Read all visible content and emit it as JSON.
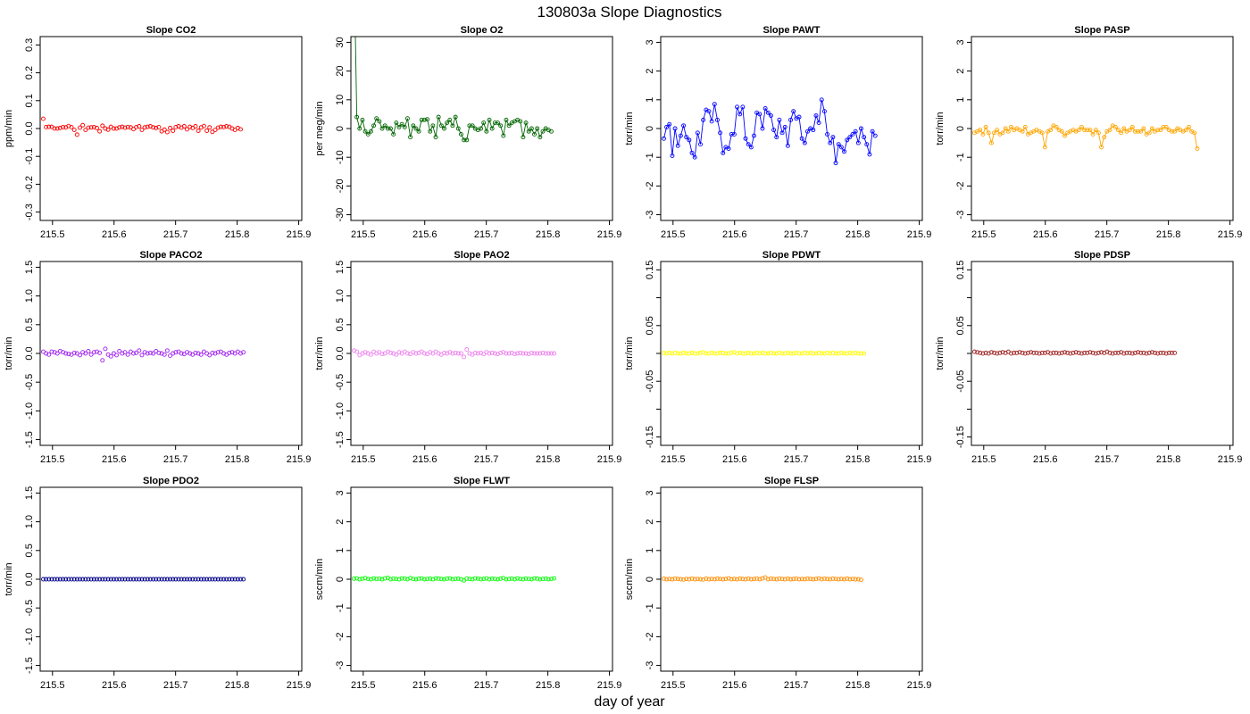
{
  "figure": {
    "title": "130803a   Slope Diagnostics",
    "xlabel": "day of year"
  },
  "chart_data": [
    {
      "type": "line",
      "title": "Slope CO2",
      "ylabel": "ppm/min",
      "xlim": [
        215.48,
        215.905
      ],
      "ylim": [
        -0.33,
        0.33
      ],
      "xticks": [
        215.5,
        215.6,
        215.7,
        215.8,
        215.9
      ],
      "xtick_labels": [
        "215.5",
        "215.6",
        "215.7",
        "215.8",
        "215.9"
      ],
      "yticks": [
        -0.3,
        -0.2,
        -0.1,
        0,
        0.1,
        0.2,
        0.3
      ],
      "ytick_labels": [
        "-0.3",
        "-0.2",
        "-0.1",
        "0.0",
        "0.1",
        "0.2",
        "0.3"
      ],
      "color": "#ff0000",
      "lines": false,
      "x_start": 215.485,
      "x_step": 0.00458,
      "values": [
        0.035,
        0.005,
        0.006,
        0.006,
        0.0,
        0.0,
        0.002,
        0.005,
        0.004,
        0.009,
        0.005,
        -0.005,
        -0.022,
        0.003,
        0.012,
        -0.005,
        0.003,
        0.004,
        0.005,
        0.002,
        -0.01,
        0.01,
        0.0,
        -0.004,
        0.006,
        0.0,
        0.0,
        0.004,
        0.006,
        0.003,
        0.005,
        0.004,
        -0.002,
        0.005,
        0.008,
        -0.005,
        0.004,
        0.006,
        0.008,
        0.004,
        0.002,
        0.005,
        -0.01,
        -0.004,
        -0.013,
        0.002,
        -0.008,
        0.005,
        0.008,
        0.003,
        0.008,
        -0.003,
        0.006,
        0.002,
        0.008,
        -0.008,
        0.004,
        0.009,
        -0.008,
        0.004,
        -0.012,
        -0.005,
        0.003,
        0.006,
        0.005,
        0.008,
        0.006,
        0.0,
        -0.005,
        0.002,
        -0.003
      ]
    },
    {
      "type": "line",
      "title": "Slope O2",
      "ylabel": "per meg/min",
      "xlim": [
        215.48,
        215.905
      ],
      "ylim": [
        -32,
        32
      ],
      "xticks": [
        215.5,
        215.6,
        215.7,
        215.8,
        215.9
      ],
      "xtick_labels": [
        "215.5",
        "215.6",
        "215.7",
        "215.8",
        "215.9"
      ],
      "yticks": [
        -30,
        -20,
        -10,
        0,
        10,
        20,
        30
      ],
      "ytick_labels": [
        "-30",
        "-20",
        "-10",
        "0",
        "10",
        "20",
        "30"
      ],
      "color": "#006400",
      "lines": true,
      "x_start": 215.485,
      "x_step": 0.00458,
      "values": [
        60,
        4,
        0,
        3,
        -1,
        -2,
        -1,
        1,
        3.5,
        2.5,
        0,
        1,
        0,
        0,
        -2,
        2,
        0.5,
        1.5,
        0.5,
        3.5,
        -3,
        1,
        0,
        -1,
        3,
        3,
        3.2,
        -1,
        1,
        -3,
        4,
        1,
        0,
        2,
        3,
        1,
        4,
        0,
        -2,
        -4,
        -4,
        1,
        1,
        0,
        -0.5,
        0,
        2,
        -1,
        3,
        0,
        2,
        2,
        1,
        -2.5,
        3,
        1,
        2,
        2.5,
        3,
        2.5,
        -3,
        2,
        -1,
        0,
        -2,
        0,
        -3,
        -1,
        0,
        -0.5,
        -1
      ]
    },
    {
      "type": "line",
      "title": "Slope PAWT",
      "ylabel": "torr/min",
      "xlim": [
        215.48,
        215.905
      ],
      "ylim": [
        -3.2,
        3.2
      ],
      "xticks": [
        215.5,
        215.6,
        215.7,
        215.8,
        215.9
      ],
      "xtick_labels": [
        "215.5",
        "215.6",
        "215.7",
        "215.8",
        "215.9"
      ],
      "yticks": [
        -3,
        -2,
        -1,
        0,
        1,
        2,
        3
      ],
      "ytick_labels": [
        "-3",
        "-2",
        "-1",
        "0",
        "1",
        "2",
        "3"
      ],
      "color": "#0000ff",
      "lines": true,
      "x_start": 215.485,
      "x_step": 0.00458,
      "values": [
        -0.35,
        0.05,
        0.15,
        -0.95,
        0.0,
        -0.6,
        -0.25,
        0.1,
        -0.3,
        -0.4,
        -0.85,
        -1.0,
        -0.15,
        -0.55,
        0.3,
        0.65,
        0.6,
        0.25,
        0.85,
        0.3,
        -0.15,
        -0.85,
        -0.65,
        -0.7,
        -0.2,
        -0.2,
        0.75,
        0.5,
        0.75,
        -0.35,
        -0.55,
        -0.65,
        -0.25,
        0.55,
        0.5,
        0.0,
        0.7,
        0.55,
        0.45,
        -0.05,
        -0.3,
        0.3,
        -0.15,
        0.05,
        -0.6,
        0.3,
        0.6,
        0.35,
        0.4,
        -0.35,
        -0.5,
        -0.1,
        0.0,
        -0.05,
        0.45,
        0.2,
        1.0,
        0.6,
        -0.2,
        -0.5,
        -0.3,
        -1.2,
        -0.55,
        -0.65,
        -0.8,
        -0.4,
        -0.3,
        -0.2,
        -0.1,
        -0.5,
        0.0,
        -0.3,
        -0.55,
        -0.9,
        -0.1,
        -0.25
      ]
    },
    {
      "type": "line",
      "title": "Slope PASP",
      "ylabel": "torr/min",
      "xlim": [
        215.48,
        215.905
      ],
      "ylim": [
        -3.2,
        3.2
      ],
      "xticks": [
        215.5,
        215.6,
        215.7,
        215.8,
        215.9
      ],
      "xtick_labels": [
        "215.5",
        "215.6",
        "215.7",
        "215.8",
        "215.9"
      ],
      "yticks": [
        -3,
        -2,
        -1,
        0,
        1,
        2,
        3
      ],
      "ytick_labels": [
        "-3",
        "-2",
        "-1",
        "0",
        "1",
        "2",
        "3"
      ],
      "color": "#ffa500",
      "lines": true,
      "x_start": 215.485,
      "x_step": 0.00458,
      "values": [
        -0.15,
        -0.1,
        -0.05,
        -0.2,
        0.05,
        -0.15,
        -0.5,
        -0.15,
        -0.05,
        -0.2,
        -0.15,
        0.0,
        -0.1,
        0.05,
        -0.05,
        0.0,
        -0.05,
        -0.1,
        0.05,
        -0.2,
        -0.15,
        -0.1,
        -0.05,
        -0.1,
        -0.15,
        -0.65,
        -0.1,
        -0.05,
        0.1,
        0.05,
        -0.05,
        -0.1,
        -0.25,
        -0.15,
        -0.1,
        -0.05,
        -0.1,
        -0.05,
        0.05,
        -0.05,
        -0.05,
        -0.05,
        -0.2,
        -0.05,
        -0.15,
        -0.65,
        -0.3,
        -0.1,
        -0.05,
        0.1,
        0.05,
        -0.05,
        -0.15,
        0.0,
        -0.1,
        -0.05,
        0.05,
        -0.1,
        -0.1,
        -0.1,
        0.0,
        -0.2,
        -0.15,
        0.0,
        -0.1,
        -0.05,
        -0.05,
        0.05,
        0.05,
        -0.05,
        -0.1,
        -0.1,
        0.0,
        -0.05,
        -0.1,
        -0.05,
        0.05,
        -0.1,
        -0.15,
        -0.7
      ]
    },
    {
      "type": "line",
      "title": "Slope PACO2",
      "ylabel": "torr/min",
      "xlim": [
        215.48,
        215.905
      ],
      "ylim": [
        -1.6,
        1.6
      ],
      "xticks": [
        215.5,
        215.6,
        215.7,
        215.8,
        215.9
      ],
      "xtick_labels": [
        "215.5",
        "215.6",
        "215.7",
        "215.8",
        "215.9"
      ],
      "yticks": [
        -1.5,
        -1,
        -0.5,
        0,
        0.5,
        1,
        1.5
      ],
      "ytick_labels": [
        "-1.5",
        "-1.0",
        "-0.5",
        "0.0",
        "0.5",
        "1.0",
        "1.5"
      ],
      "color": "#a020f0",
      "lines": false,
      "x_start": 215.485,
      "x_step": 0.00458,
      "values": [
        0.03,
        0.0,
        -0.02,
        0.03,
        0.02,
        0.0,
        0.04,
        0.02,
        0.0,
        -0.01,
        -0.02,
        0.01,
        0.0,
        -0.03,
        0.02,
        0.0,
        0.04,
        -0.02,
        0.02,
        0.03,
        0.01,
        -0.12,
        0.08,
        -0.02,
        -0.05,
        0.0,
        -0.03,
        0.04,
        0.0,
        0.02,
        -0.02,
        0.03,
        0.0,
        0.01,
        0.05,
        -0.03,
        0.02,
        0.0,
        0.01,
        0.0,
        0.04,
        0.01,
        0.0,
        -0.02,
        0.05,
        -0.04,
        0.0,
        0.02,
        0.03,
        0.0,
        -0.01,
        0.02,
        0.0,
        -0.02,
        0.01,
        0.0,
        -0.02,
        0.03,
        0.0,
        -0.03,
        0.01,
        0.0,
        0.02,
        0.03,
        0.0,
        -0.02,
        0.01,
        0.02,
        0.0,
        0.03,
        0.0,
        0.02
      ]
    },
    {
      "type": "line",
      "title": "Slope PAO2",
      "ylabel": "torr/min",
      "xlim": [
        215.48,
        215.905
      ],
      "ylim": [
        -1.6,
        1.6
      ],
      "xticks": [
        215.5,
        215.6,
        215.7,
        215.8,
        215.9
      ],
      "xtick_labels": [
        "215.5",
        "215.6",
        "215.7",
        "215.8",
        "215.9"
      ],
      "yticks": [
        -1.5,
        -1,
        -0.5,
        0,
        0.5,
        1,
        1.5
      ],
      "ytick_labels": [
        "-1.5",
        "-1.0",
        "-0.5",
        "0.0",
        "0.5",
        "1.0",
        "1.5"
      ],
      "color": "#ee82ee",
      "lines": false,
      "x_start": 215.485,
      "x_step": 0.00458,
      "values": [
        0.05,
        0.03,
        -0.03,
        0.0,
        0.02,
        0.0,
        -0.02,
        0.03,
        0.0,
        0.02,
        -0.01,
        0.0,
        0.03,
        0.01,
        0.0,
        -0.02,
        0.02,
        0.0,
        0.03,
        0.0,
        -0.01,
        0.02,
        0.0,
        0.01,
        0.03,
        0.0,
        -0.01,
        0.02,
        0.0,
        0.03,
        0.0,
        -0.02,
        0.01,
        0.0,
        0.02,
        0.0,
        0.01,
        0.0,
        0.0,
        -0.06,
        0.07,
        0.0,
        -0.02,
        0.01,
        0.0,
        0.01,
        -0.01,
        0.02,
        0.0,
        0.01,
        0.0,
        -0.01,
        0.01,
        0.02,
        0.0,
        0.0,
        0.01,
        -0.01,
        0.0,
        0.01,
        0.0,
        0.0,
        -0.01,
        0.01,
        0.0,
        0.0,
        0.0,
        0.01,
        0.0,
        0.0,
        0.0,
        0.0
      ]
    },
    {
      "type": "line",
      "title": "Slope PDWT",
      "ylabel": "torr/min",
      "xlim": [
        215.48,
        215.905
      ],
      "ylim": [
        -0.165,
        0.165
      ],
      "xticks": [
        215.5,
        215.6,
        215.7,
        215.8,
        215.9
      ],
      "xtick_labels": [
        "215.5",
        "215.6",
        "215.7",
        "215.8",
        "215.9"
      ],
      "yticks": [
        -0.15,
        -0.1,
        -0.05,
        0,
        0.05,
        0.1,
        0.15
      ],
      "ytick_labels": [
        "-0.15",
        "",
        "-0.05",
        "",
        "0.05",
        "",
        "0.15"
      ],
      "color": "#ffff00",
      "lines": false,
      "x_start": 215.485,
      "x_step": 0.00458,
      "values": [
        0.001,
        0.0,
        0.001,
        0.0,
        0.001,
        0.0,
        0.0,
        0.001,
        0.0,
        0.0,
        0.001,
        0.0,
        0.0,
        0.001,
        0.002,
        0.0,
        0.0,
        0.001,
        0.0,
        0.0,
        0.001,
        0.001,
        0.0,
        0.0,
        0.001,
        0.002,
        0.0,
        0.001,
        0.0,
        0.0,
        0.001,
        0.0,
        0.0,
        0.001,
        0.0,
        0.001,
        0.0,
        0.0,
        0.001,
        0.0,
        0.0,
        0.001,
        0.0,
        0.0,
        0.001,
        0.0,
        0.0,
        0.001,
        0.0,
        0.0,
        0.001,
        0.0,
        0.001,
        0.0,
        0.0,
        0.001,
        0.0,
        0.0,
        0.001,
        0.0,
        0.001,
        0.0,
        0.0,
        0.001,
        0.0,
        0.0,
        0.001,
        0.0,
        0.001,
        0.0,
        0.0,
        0.0
      ]
    },
    {
      "type": "line",
      "title": "Slope PDSP",
      "ylabel": "torr/min",
      "xlim": [
        215.48,
        215.905
      ],
      "ylim": [
        -0.165,
        0.165
      ],
      "xticks": [
        215.5,
        215.6,
        215.7,
        215.8,
        215.9
      ],
      "xtick_labels": [
        "215.5",
        "215.6",
        "215.7",
        "215.8",
        "215.9"
      ],
      "yticks": [
        -0.15,
        -0.1,
        -0.05,
        0,
        0.05,
        0.1,
        0.15
      ],
      "ytick_labels": [
        "-0.15",
        "",
        "-0.05",
        "",
        "0.05",
        "",
        "0.15"
      ],
      "color": "#a52a2a",
      "lines": false,
      "x_start": 215.485,
      "x_step": 0.00458,
      "values": [
        0.003,
        0.002,
        0.001,
        0.0,
        0.001,
        0.0,
        0.002,
        0.001,
        0.0,
        0.001,
        0.002,
        0.001,
        0.003,
        0.0,
        0.001,
        0.001,
        0.002,
        0.001,
        0.0,
        0.001,
        0.002,
        0.001,
        0.001,
        0.0,
        0.001,
        0.001,
        0.002,
        0.0,
        0.001,
        0.001,
        0.0,
        0.001,
        0.002,
        0.001,
        0.0,
        0.001,
        0.002,
        0.001,
        0.0,
        0.001,
        0.001,
        0.002,
        0.001,
        0.0,
        0.001,
        0.002,
        0.001,
        0.003,
        0.001,
        0.0,
        0.001,
        0.001,
        0.002,
        0.0,
        0.001,
        0.001,
        0.0,
        0.001,
        0.002,
        0.001,
        0.001,
        0.0,
        0.001,
        0.002,
        0.001,
        0.0,
        0.001,
        0.001,
        0.0,
        0.001,
        0.001,
        0.001
      ]
    },
    {
      "type": "line",
      "title": "Slope PDO2",
      "ylabel": "torr/min",
      "xlim": [
        215.48,
        215.905
      ],
      "ylim": [
        -1.6,
        1.6
      ],
      "xticks": [
        215.5,
        215.6,
        215.7,
        215.8,
        215.9
      ],
      "xtick_labels": [
        "215.5",
        "215.6",
        "215.7",
        "215.8",
        "215.9"
      ],
      "yticks": [
        -1.5,
        -1,
        -0.5,
        0,
        0.5,
        1,
        1.5
      ],
      "ytick_labels": [
        "-1.5",
        "-1.0",
        "-0.5",
        "0.0",
        "0.5",
        "1.0",
        "1.5"
      ],
      "color": "#00008b",
      "lines": false,
      "x_start": 215.485,
      "x_step": 0.00458,
      "values": [
        0,
        0,
        0,
        0,
        0,
        0,
        0,
        0,
        0,
        0,
        0,
        0,
        0,
        0,
        0,
        0,
        0,
        0,
        0,
        0,
        0,
        0,
        0,
        0,
        0,
        0,
        0,
        0,
        0,
        0,
        0,
        0,
        0,
        0,
        0,
        0,
        0,
        0,
        0,
        0,
        0,
        0,
        0,
        0,
        0,
        0,
        0,
        0,
        0,
        0,
        0,
        0,
        0,
        0,
        0,
        0,
        0,
        0,
        0,
        0,
        0,
        0,
        0,
        0,
        0,
        0,
        0,
        0,
        0,
        0,
        0,
        0
      ]
    },
    {
      "type": "line",
      "title": "Slope FLWT",
      "ylabel": "sccm/min",
      "xlim": [
        215.48,
        215.905
      ],
      "ylim": [
        -3.2,
        3.2
      ],
      "xticks": [
        215.5,
        215.6,
        215.7,
        215.8,
        215.9
      ],
      "xtick_labels": [
        "215.5",
        "215.6",
        "215.7",
        "215.8",
        "215.9"
      ],
      "yticks": [
        -3,
        -2,
        -1,
        0,
        1,
        2,
        3
      ],
      "ytick_labels": [
        "-3",
        "-2",
        "-1",
        "0",
        "1",
        "2",
        "3"
      ],
      "color": "#00ff00",
      "lines": false,
      "x_start": 215.485,
      "x_step": 0.00458,
      "values": [
        0.02,
        0.03,
        0.0,
        0.02,
        0.04,
        0.01,
        0.0,
        0.03,
        0.01,
        0.02,
        0.0,
        0.03,
        0.05,
        0.0,
        0.02,
        0.01,
        0.0,
        0.03,
        0.02,
        0.0,
        0.04,
        0.01,
        0.0,
        0.02,
        0.03,
        0.0,
        0.01,
        0.02,
        0.0,
        0.03,
        0.02,
        0.01,
        0.0,
        0.02,
        0.03,
        0.0,
        0.01,
        0.02,
        0.0,
        -0.04,
        0.02,
        0.01,
        0.0,
        0.03,
        0.02,
        0.0,
        0.01,
        0.03,
        0.0,
        0.02,
        0.01,
        0.0,
        0.02,
        0.04,
        0.0,
        0.01,
        0.02,
        0.0,
        0.03,
        0.01,
        0.0,
        0.02,
        0.01,
        0.0,
        0.03,
        0.02,
        0.0,
        0.01,
        0.02,
        0.0,
        0.01,
        0.03
      ]
    },
    {
      "type": "line",
      "title": "Slope FLSP",
      "ylabel": "sccm/min",
      "xlim": [
        215.48,
        215.905
      ],
      "ylim": [
        -3.2,
        3.2
      ],
      "xticks": [
        215.5,
        215.6,
        215.7,
        215.8,
        215.9
      ],
      "xtick_labels": [
        "215.5",
        "215.6",
        "215.7",
        "215.8",
        "215.9"
      ],
      "yticks": [
        -3,
        -2,
        -1,
        0,
        1,
        2,
        3
      ],
      "ytick_labels": [
        "-3",
        "-2",
        "-1",
        "0",
        "1",
        "2",
        "3"
      ],
      "color": "#ff8c00",
      "lines": false,
      "x_start": 215.485,
      "x_step": 0.00458,
      "values": [
        0.02,
        0.0,
        0.01,
        0.0,
        0.02,
        0.01,
        0.0,
        -0.01,
        0.01,
        0.0,
        0.02,
        0.0,
        0.01,
        0.0,
        -0.01,
        0.02,
        0.0,
        0.01,
        0.0,
        0.02,
        0.01,
        0.0,
        0.01,
        0.03,
        0.0,
        0.01,
        0.0,
        0.02,
        0.01,
        0.0,
        0.02,
        0.0,
        0.01,
        0.02,
        0.0,
        0.03,
        0.06,
        0.0,
        0.02,
        0.01,
        0.0,
        0.02,
        0.01,
        0.0,
        0.02,
        0.0,
        0.01,
        0.02,
        0.0,
        0.01,
        0.0,
        0.02,
        0.01,
        0.0,
        0.01,
        0.03,
        0.0,
        0.02,
        0.01,
        0.0,
        0.02,
        0.01,
        0.0,
        0.01,
        0.0,
        0.02,
        0.0,
        0.01,
        0.0,
        0.0,
        -0.02
      ]
    }
  ]
}
